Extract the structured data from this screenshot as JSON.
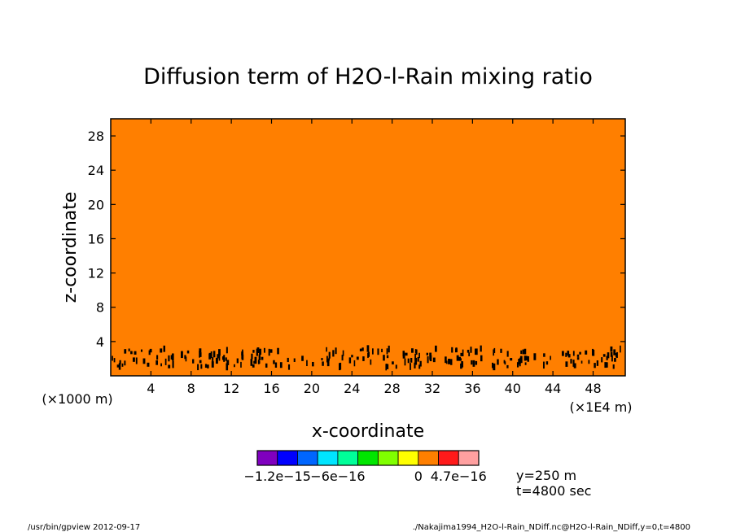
{
  "chart_data": {
    "type": "heatmap",
    "title": "Diffusion term of H2O-l-Rain mixing ratio",
    "xlabel": "x-coordinate",
    "ylabel": "z-coordinate",
    "x_unit_label": "(×1000 m)",
    "x_right_unit_label": "(×1E4 m)",
    "xlim": [
      0,
      51.2
    ],
    "ylim": [
      0,
      30
    ],
    "x_ticks": [
      4,
      8,
      12,
      16,
      20,
      24,
      28,
      32,
      36,
      40,
      44,
      48
    ],
    "y_ticks": [
      4,
      8,
      12,
      16,
      20,
      24,
      28
    ],
    "field_value": 0,
    "field_color": "#ff7f00",
    "noise_band": {
      "z_min": 1.0,
      "z_max": 3.2,
      "color": "#000000"
    },
    "colorbar": {
      "colors": [
        "#7f00bf",
        "#0000ff",
        "#0066ff",
        "#00e5ff",
        "#00ff99",
        "#00e600",
        "#80ff00",
        "#ffff00",
        "#ff7f00",
        "#ff1a1a",
        "#ffa0a0"
      ],
      "tick_labels": [
        "−1.2e−15",
        "−6e−16",
        "0",
        "4.7e−16"
      ]
    },
    "annotations": {
      "y_info": "y=250 m",
      "t_info": "t=4800 sec"
    }
  },
  "footer": {
    "left": "/usr/bin/gpview   2012-09-17",
    "right": "./Nakajima1994_H2O-l-Rain_NDiff.nc@H2O-l-Rain_NDiff,y=0,t=4800"
  }
}
